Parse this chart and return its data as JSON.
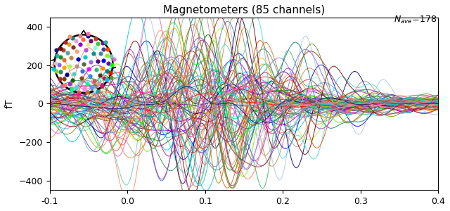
{
  "title": "Magnetometers (85 channels)",
  "nave_text": "N_{ave}=178",
  "ylabel": "fT",
  "xlim": [
    -0.1,
    0.4
  ],
  "ylim": [
    -450,
    450
  ],
  "yticks": [
    -400,
    -200,
    0,
    200,
    400
  ],
  "xticks": [
    -0.1,
    0.0,
    0.1,
    0.2,
    0.3,
    0.4
  ],
  "n_channels": 85,
  "seed": 42,
  "background_color": "#ffffff",
  "title_fontsize": 11,
  "figsize": [
    6.4,
    3.0
  ],
  "dpi": 100,
  "color_pool": [
    "#00ced1",
    "#008b8b",
    "#20b2aa",
    "#40e0d0",
    "#009090",
    "#006400",
    "#228b22",
    "#32cd32",
    "#2e8b57",
    "#00fa9a",
    "#0000cd",
    "#0000ff",
    "#4169e1",
    "#6495ed",
    "#191970",
    "#8b008b",
    "#9400d3",
    "#9932cc",
    "#ba55d3",
    "#6a0dad",
    "#ff1493",
    "#ff69b4",
    "#ff00ff",
    "#da70d6",
    "#c71585",
    "#dc143c",
    "#ff0000",
    "#ff4500",
    "#cd5c5c",
    "#b22222",
    "#ff8c00",
    "#ffa500",
    "#ff7f50",
    "#ffa07a",
    "#e07030",
    "#8b4513",
    "#a0522d",
    "#800000",
    "#7b3f00",
    "#5c3317",
    "#3cb371",
    "#66cdaa",
    "#7fffd4",
    "#afeeee",
    "#5f9ea0",
    "#000080",
    "#00008b",
    "#1e90ff",
    "#00bfff",
    "#4682b4",
    "#ff6347",
    "#ff8c69",
    "#f08080",
    "#e9967a",
    "#cd853f",
    "#adff2f",
    "#7fff00",
    "#00ff7f",
    "#00ff00",
    "#9acd32",
    "#db7093",
    "#ee82ee",
    "#dda0dd",
    "#d8bfd8",
    "#b0c4de",
    "#800080",
    "#4b0082",
    "#7b68ee",
    "#9370db",
    "#483d8b",
    "#008080",
    "#00ced1",
    "#48d1cc",
    "#20b2aa",
    "#2f9ba0",
    "#b8860b",
    "#daa520",
    "#f0e68c",
    "#556b2f",
    "#6b8e23",
    "#a52a2a",
    "#d2691e",
    "#bc8f8f",
    "#c0392b",
    "#922b21"
  ]
}
